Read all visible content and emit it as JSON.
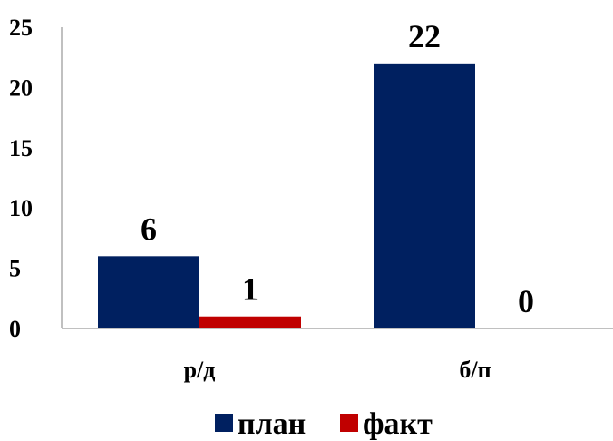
{
  "chart_data": {
    "type": "bar",
    "categories": [
      "р/д",
      "б/п"
    ],
    "series": [
      {
        "name": "план",
        "values": [
          6,
          22
        ],
        "color": "#002060"
      },
      {
        "name": "факт",
        "values": [
          1,
          0
        ],
        "color": "#C00000"
      }
    ],
    "ylim": [
      0,
      25
    ],
    "yticks": [
      0,
      5,
      10,
      15,
      20,
      25
    ],
    "grid": false,
    "legend": "bottom"
  }
}
